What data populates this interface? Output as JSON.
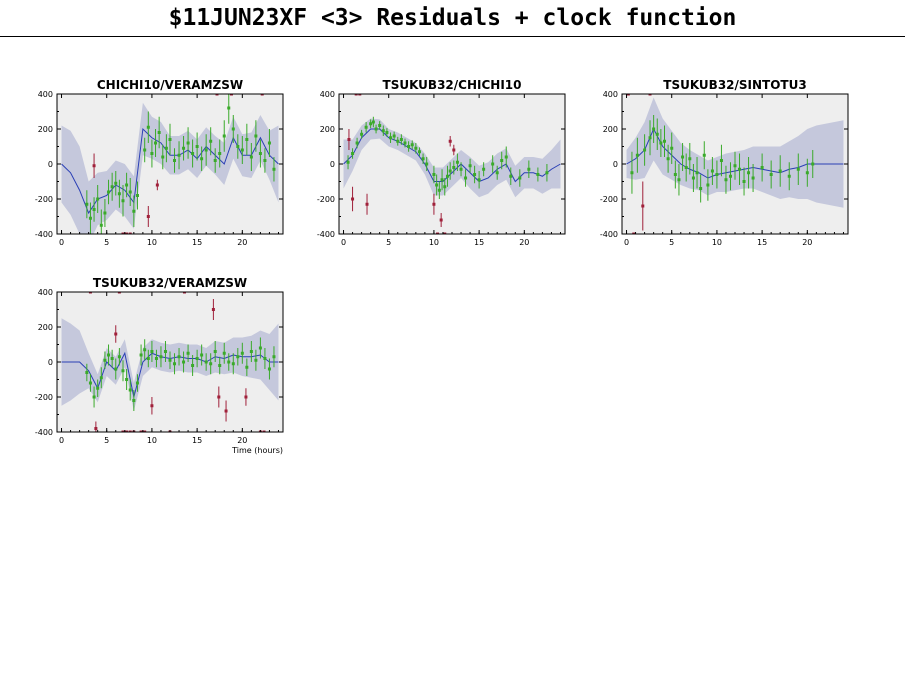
{
  "page": {
    "title": "$11JUN23XF <3> Residuals + clock function"
  },
  "colors": {
    "plot_bg": "#eeeeee",
    "band": "#c5c8dc",
    "clock_line": "#2a3fb5",
    "good_point": "#3aaa2a",
    "flagged_point": "#a0203a"
  },
  "chart_data": [
    {
      "type": "scatter",
      "title": "CHICHI10/VERAMZSW",
      "xlabel": "",
      "xlim": [
        -0.5,
        24.5
      ],
      "ylim": [
        -400,
        400
      ],
      "xticks": [
        0,
        5,
        10,
        15,
        20
      ],
      "yticks": [
        -400,
        -200,
        0,
        200,
        400
      ],
      "clock": {
        "x": [
          0,
          1,
          2,
          3,
          4,
          5,
          6,
          7,
          8,
          9,
          10,
          11,
          12,
          13,
          14,
          15,
          16,
          17,
          18,
          19,
          20,
          21,
          22,
          23,
          24
        ],
        "y": [
          0,
          -50,
          -150,
          -280,
          -200,
          -180,
          -120,
          -150,
          -220,
          200,
          150,
          120,
          50,
          50,
          80,
          30,
          100,
          50,
          0,
          150,
          50,
          50,
          150,
          50,
          0
        ],
        "band": [
          220,
          240,
          250,
          180,
          150,
          140,
          140,
          150,
          150,
          150,
          120,
          120,
          110,
          110,
          110,
          110,
          110,
          110,
          120,
          120,
          120,
          130,
          130,
          140,
          220
        ]
      },
      "good": {
        "x": [
          2.8,
          3.2,
          3.6,
          4.0,
          4.4,
          4.8,
          5.2,
          5.6,
          6.0,
          6.4,
          6.8,
          7.2,
          7.6,
          8.0,
          8.4,
          9.2,
          9.6,
          10.0,
          10.4,
          10.8,
          11.2,
          11.6,
          12.0,
          12.5,
          13.0,
          13.5,
          14.0,
          14.5,
          15.0,
          15.5,
          16.0,
          16.5,
          17.0,
          17.5,
          18.0,
          18.5,
          19.0,
          19.5,
          20.0,
          20.5,
          21.0,
          21.5,
          22.0,
          22.5,
          23.0,
          23.5
        ],
        "y": [
          -230,
          -310,
          -260,
          -200,
          -350,
          -280,
          -160,
          -130,
          -110,
          -170,
          -210,
          -120,
          -160,
          -270,
          -180,
          80,
          210,
          60,
          120,
          180,
          40,
          90,
          140,
          20,
          50,
          90,
          120,
          60,
          100,
          30,
          80,
          130,
          20,
          60,
          160,
          320,
          200,
          100,
          80,
          140,
          40,
          160,
          60,
          20,
          120,
          -30
        ],
        "err": [
          80,
          90,
          70,
          80,
          90,
          80,
          70,
          80,
          70,
          80,
          90,
          70,
          80,
          90,
          80,
          70,
          90,
          80,
          80,
          90,
          70,
          80,
          90,
          70,
          80,
          70,
          90,
          80,
          80,
          70,
          90,
          80,
          70,
          80,
          90,
          90,
          80,
          70,
          80,
          90,
          80,
          90,
          80,
          70,
          80,
          70
        ]
      },
      "flagged": {
        "x": [
          3.6,
          6.8,
          7.2,
          7.6,
          9.6,
          10.6,
          17.2,
          18.8,
          22.2
        ],
        "y": [
          -10,
          -400,
          -400,
          -400,
          -300,
          -120,
          400,
          400,
          400
        ],
        "err": [
          70,
          0,
          0,
          0,
          60,
          30,
          0,
          0,
          0
        ]
      }
    },
    {
      "type": "scatter",
      "title": "TSUKUB32/CHICHI10",
      "xlabel": "",
      "xlim": [
        -0.5,
        24.5
      ],
      "ylim": [
        -400,
        400
      ],
      "xticks": [
        0,
        5,
        10,
        15,
        20
      ],
      "yticks": [
        -400,
        -200,
        0,
        200,
        400
      ],
      "clock": {
        "x": [
          0,
          1,
          2,
          3,
          4,
          5,
          6,
          7,
          8,
          9,
          10,
          11,
          12,
          13,
          14,
          15,
          16,
          17,
          18,
          19,
          20,
          21,
          22,
          23,
          24
        ],
        "y": [
          0,
          50,
          150,
          200,
          200,
          150,
          130,
          100,
          70,
          0,
          -100,
          -100,
          -50,
          0,
          -50,
          -100,
          -80,
          -30,
          0,
          -100,
          -50,
          -50,
          -70,
          -30,
          0
        ],
        "band": [
          140,
          90,
          70,
          60,
          55,
          50,
          50,
          50,
          50,
          60,
          80,
          80,
          80,
          80,
          90,
          90,
          90,
          90,
          90,
          90,
          90,
          90,
          100,
          110,
          140
        ]
      },
      "good": {
        "x": [
          0.5,
          1.0,
          1.5,
          2.0,
          2.5,
          3.0,
          3.3,
          3.6,
          4.0,
          4.4,
          4.8,
          5.2,
          5.6,
          6.0,
          6.4,
          6.8,
          7.2,
          7.6,
          8.0,
          8.4,
          8.8,
          9.2,
          10.0,
          10.3,
          10.6,
          10.9,
          11.2,
          11.5,
          11.8,
          12.2,
          12.6,
          13.0,
          13.5,
          14.0,
          14.5,
          15.0,
          15.5,
          16.5,
          17.0,
          17.5,
          18.0,
          18.5,
          19.5,
          20.5,
          21.5,
          22.5
        ],
        "y": [
          10,
          60,
          120,
          170,
          210,
          230,
          240,
          200,
          220,
          190,
          180,
          150,
          160,
          130,
          140,
          120,
          100,
          110,
          90,
          70,
          30,
          0,
          -60,
          -120,
          -150,
          -90,
          -130,
          -70,
          -40,
          -20,
          10,
          -30,
          -80,
          -10,
          -60,
          -90,
          -30,
          0,
          -50,
          20,
          40,
          -70,
          -80,
          -30,
          -60,
          -50
        ],
        "err": [
          40,
          30,
          30,
          25,
          30,
          25,
          30,
          25,
          25,
          30,
          25,
          30,
          25,
          25,
          30,
          25,
          30,
          25,
          30,
          25,
          30,
          40,
          50,
          60,
          50,
          60,
          50,
          60,
          50,
          40,
          50,
          40,
          50,
          40,
          50,
          50,
          40,
          50,
          40,
          50,
          60,
          50,
          50,
          50,
          40,
          50
        ]
      },
      "flagged": {
        "x": [
          0.6,
          1.0,
          1.4,
          1.8,
          2.6,
          10.0,
          10.4,
          10.8,
          11.2,
          11.8,
          12.2
        ],
        "y": [
          140,
          -200,
          400,
          400,
          -230,
          -230,
          -400,
          -320,
          -400,
          130,
          80
        ],
        "err": [
          60,
          70,
          0,
          0,
          60,
          60,
          0,
          40,
          0,
          30,
          30
        ]
      }
    },
    {
      "type": "scatter",
      "title": "TSUKUB32/SINTOTU3",
      "xlabel": "",
      "xlim": [
        -0.5,
        24.5
      ],
      "ylim": [
        -400,
        400
      ],
      "xticks": [
        0,
        5,
        10,
        15,
        20
      ],
      "yticks": [
        -400,
        -200,
        0,
        200,
        400
      ],
      "clock": {
        "x": [
          0,
          1,
          2,
          3,
          4,
          5,
          6,
          7,
          8,
          9,
          10,
          11,
          12,
          13,
          14,
          15,
          16,
          17,
          18,
          19,
          20,
          21,
          22,
          23,
          24
        ],
        "y": [
          0,
          30,
          80,
          200,
          100,
          50,
          0,
          -30,
          -50,
          -80,
          -60,
          -50,
          -40,
          -30,
          -20,
          -30,
          -40,
          -50,
          -30,
          -20,
          0,
          0,
          0,
          0,
          0
        ],
        "band": [
          80,
          120,
          160,
          180,
          160,
          140,
          120,
          110,
          100,
          100,
          100,
          110,
          110,
          110,
          120,
          130,
          140,
          150,
          160,
          180,
          200,
          220,
          230,
          240,
          250
        ]
      },
      "good": {
        "x": [
          0.6,
          1.2,
          2.0,
          2.6,
          3.0,
          3.4,
          3.8,
          4.2,
          4.6,
          5.0,
          5.4,
          5.8,
          6.2,
          6.6,
          7.0,
          7.4,
          7.8,
          8.2,
          8.6,
          9.0,
          9.5,
          10.0,
          10.5,
          11.0,
          11.5,
          12.0,
          12.5,
          13.0,
          13.5,
          14.0,
          15.0,
          16.0,
          17.0,
          18.0,
          19.0,
          20.0,
          20.6
        ],
        "y": [
          -50,
          50,
          80,
          150,
          200,
          170,
          120,
          130,
          30,
          90,
          -60,
          -90,
          40,
          -20,
          30,
          -80,
          -50,
          -140,
          50,
          -120,
          -40,
          -60,
          20,
          -90,
          -70,
          -10,
          -30,
          -100,
          -50,
          -80,
          -20,
          -60,
          -40,
          -70,
          -30,
          -50,
          0
        ],
        "err": [
          120,
          100,
          90,
          100,
          80,
          90,
          80,
          90,
          80,
          90,
          80,
          90,
          80,
          80,
          90,
          80,
          90,
          80,
          80,
          90,
          80,
          80,
          90,
          80,
          80,
          80,
          90,
          80,
          90,
          80,
          80,
          80,
          90,
          80,
          90,
          80,
          80
        ]
      },
      "flagged": {
        "x": [
          0.2,
          1.8,
          2.6,
          0.8
        ],
        "y": [
          400,
          -240,
          400,
          -400
        ],
        "err": [
          0,
          140,
          0,
          0
        ]
      }
    },
    {
      "type": "scatter",
      "title": "TSUKUB32/VERAMZSW",
      "xlabel": "Time (hours)",
      "xlim": [
        -0.5,
        24.5
      ],
      "ylim": [
        -400,
        400
      ],
      "xticks": [
        0,
        5,
        10,
        15,
        20
      ],
      "yticks": [
        -400,
        -200,
        0,
        200,
        400
      ],
      "clock": {
        "x": [
          0,
          1,
          2,
          3,
          4,
          5,
          6,
          7,
          8,
          9,
          10,
          11,
          12,
          13,
          14,
          15,
          16,
          17,
          18,
          19,
          20,
          21,
          22,
          23,
          24
        ],
        "y": [
          0,
          0,
          0,
          -50,
          -150,
          0,
          -50,
          50,
          -200,
          0,
          50,
          30,
          20,
          30,
          20,
          20,
          0,
          30,
          20,
          40,
          30,
          30,
          40,
          0,
          0
        ],
        "band": [
          250,
          220,
          180,
          100,
          80,
          80,
          80,
          80,
          80,
          80,
          80,
          80,
          80,
          80,
          80,
          80,
          80,
          90,
          90,
          100,
          110,
          120,
          140,
          160,
          220
        ]
      },
      "good": {
        "x": [
          2.8,
          3.2,
          3.6,
          4.0,
          4.4,
          4.8,
          5.2,
          5.6,
          6.0,
          6.4,
          6.8,
          7.2,
          7.6,
          8.0,
          8.4,
          8.8,
          9.2,
          9.6,
          10.0,
          10.5,
          11.0,
          11.5,
          12.0,
          12.5,
          13.0,
          13.5,
          14.0,
          14.5,
          15.0,
          15.5,
          16.0,
          16.5,
          17.0,
          17.5,
          18.0,
          18.5,
          19.0,
          19.5,
          20.0,
          20.5,
          21.0,
          21.5,
          22.0,
          22.5,
          23.0,
          23.5
        ],
        "y": [
          -60,
          -120,
          -200,
          -150,
          -90,
          10,
          40,
          20,
          -40,
          30,
          -50,
          -100,
          -160,
          -220,
          -120,
          40,
          70,
          20,
          60,
          20,
          30,
          60,
          10,
          -10,
          30,
          0,
          50,
          -20,
          20,
          40,
          0,
          -10,
          60,
          -20,
          50,
          0,
          -10,
          30,
          50,
          -30,
          60,
          10,
          80,
          20,
          -40,
          30
        ],
        "err": [
          50,
          50,
          60,
          50,
          60,
          50,
          60,
          50,
          60,
          50,
          60,
          60,
          60,
          60,
          50,
          60,
          60,
          50,
          60,
          50,
          60,
          60,
          50,
          60,
          50,
          60,
          50,
          60,
          50,
          60,
          50,
          60,
          60,
          50,
          60,
          50,
          60,
          50,
          60,
          50,
          60,
          60,
          60,
          60,
          60,
          60
        ]
      },
      "flagged": {
        "x": [
          3.2,
          3.8,
          6.0,
          6.4,
          6.8,
          7.2,
          7.6,
          8.0,
          8.8,
          9.2,
          10.0,
          12.0,
          13.6,
          16.8,
          17.4,
          18.2,
          20.4,
          22.0,
          22.4
        ],
        "y": [
          400,
          -380,
          160,
          400,
          -400,
          -400,
          -400,
          -400,
          -400,
          -400,
          -250,
          -400,
          400,
          300,
          -200,
          -280,
          -200,
          -400,
          -400
        ],
        "err": [
          0,
          40,
          50,
          0,
          0,
          0,
          0,
          0,
          0,
          0,
          50,
          0,
          0,
          60,
          60,
          60,
          50,
          0,
          0
        ]
      }
    }
  ]
}
